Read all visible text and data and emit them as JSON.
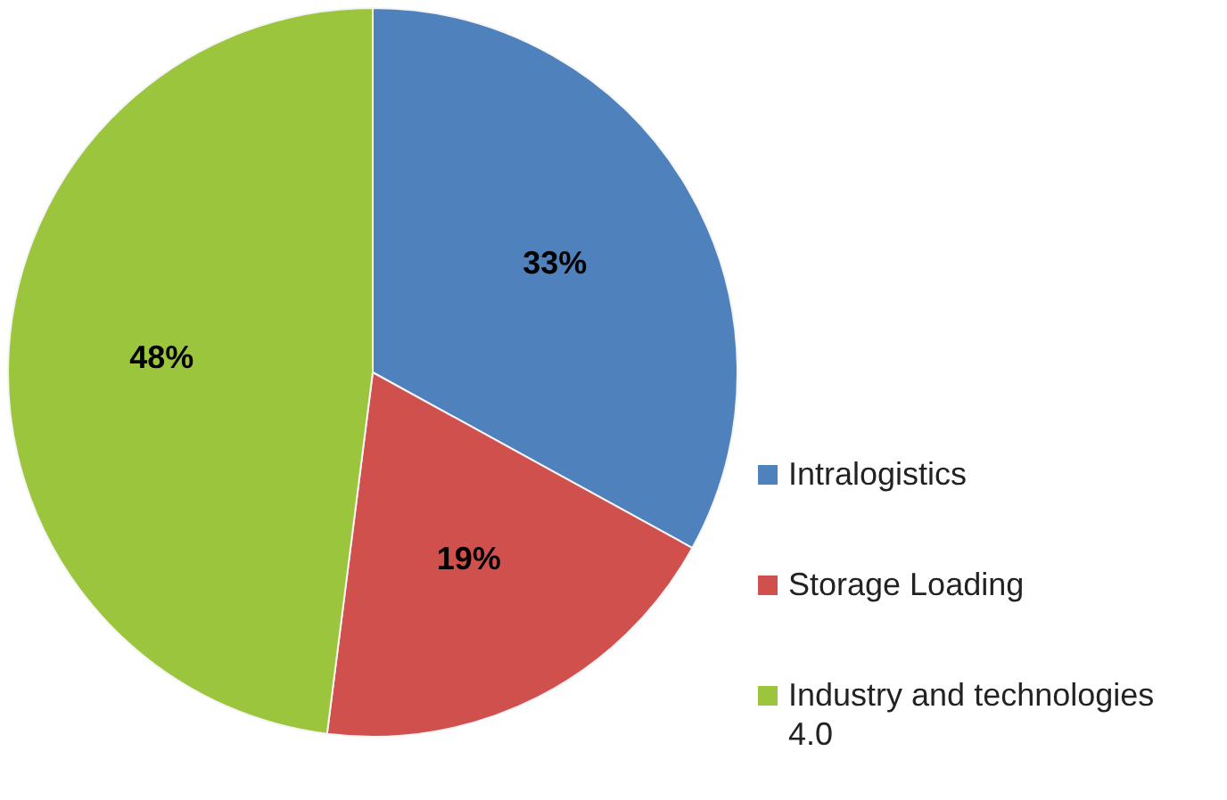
{
  "chart_data": {
    "type": "pie",
    "categories": [
      "Intralogistics",
      "Storage Loading",
      "Industry and technologies 4.0"
    ],
    "values": [
      33,
      19,
      48
    ],
    "value_labels": [
      "33%",
      "19%",
      "48%"
    ],
    "colors": [
      "#4f81bd",
      "#d0504d",
      "#9bc53d"
    ],
    "legend": "right"
  }
}
